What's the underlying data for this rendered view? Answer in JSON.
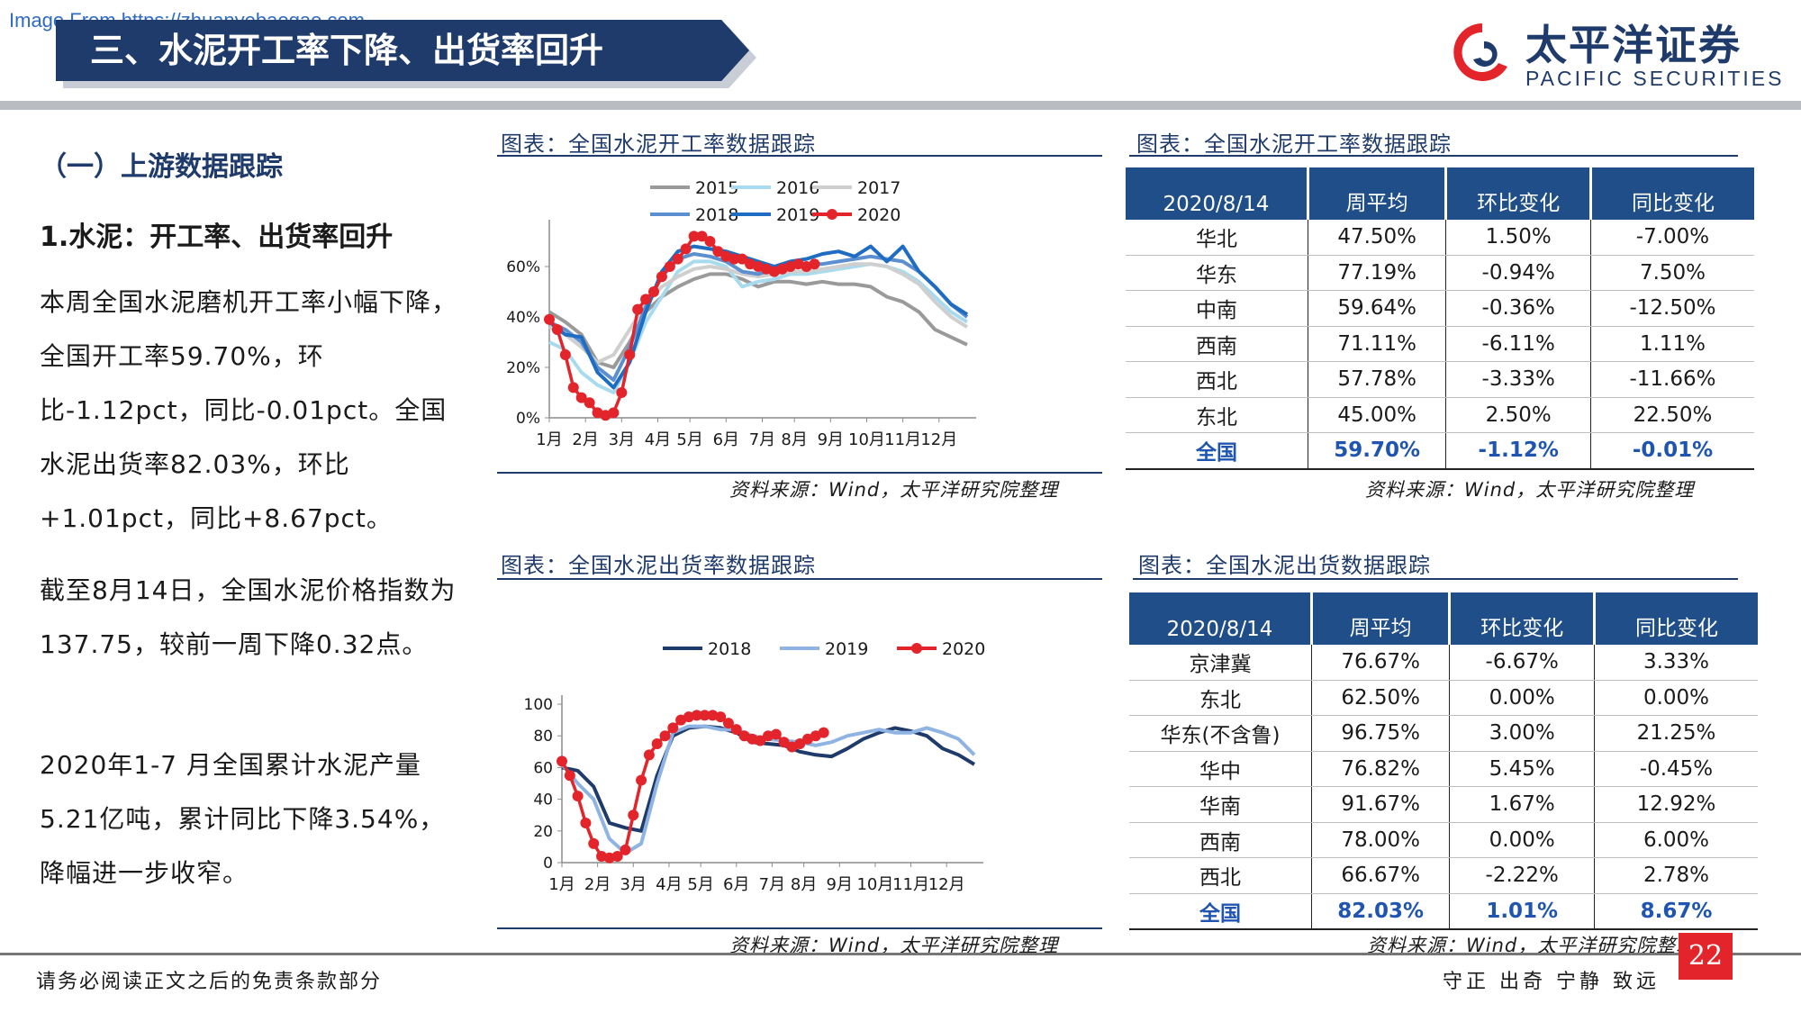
{
  "header": {
    "watermark": "Image From https://zhuanyebaogao.com",
    "title": "三、水泥开工率下降、出货率回升",
    "logo_cn": "太平洋证券",
    "logo_en": "PACIFIC SECURITIES",
    "brand_color": "#1f3b6b",
    "logo_accent": "#e3242b"
  },
  "left": {
    "section": "（一）上游数据跟踪",
    "subheading": "1.水泥：开工率、出货率回升",
    "para1": "本周全国水泥磨机开工率小幅下降，全国开工率59.70%，环比-1.12pct，同比-0.01pct。全国水泥出货率82.03%，环比+1.01pct，同比+8.67pct。",
    "para2": "截至8月14日，全国水泥价格指数为137.75，较前一周下降0.32点。",
    "para3": "2020年1-7 月全国累计水泥产量5.21亿吨，累计同比下降3.54%，降幅进一步收窄。"
  },
  "fig1": {
    "title": "图表：全国水泥开工率数据跟踪",
    "source": "资料来源：Wind，太平洋研究院整理"
  },
  "fig2": {
    "title": "图表：全国水泥开工率数据跟踪",
    "source": "资料来源：Wind，太平洋研究院整理"
  },
  "fig3": {
    "title": "图表：全国水泥出货率数据跟踪",
    "source": "资料来源：Wind，太平洋研究院整理"
  },
  "fig4": {
    "title": "图表：全国水泥出货数据跟踪",
    "source": "资料来源：Wind，太平洋研究院整理"
  },
  "chart_data": [
    {
      "type": "line",
      "x_unit": "week of year",
      "x_tick_positions": [
        1,
        5.5,
        10,
        14.5,
        18.5,
        23,
        27.5,
        31.5,
        36,
        40.5,
        45,
        49.5
      ],
      "x_tick_labels": [
        "1月",
        "2月",
        "3月",
        "4月",
        "5月",
        "6月",
        "7月",
        "8月",
        "9月",
        "10月",
        "11月",
        "12月"
      ],
      "y_ticks": [
        0,
        20,
        40,
        60
      ],
      "y_tick_labels": [
        "0%",
        "20%",
        "40%",
        "60%"
      ],
      "ylim": [
        0,
        75
      ],
      "xlim": [
        1,
        53
      ],
      "legend_position": "top",
      "series": [
        {
          "name": "2015",
          "color": "#9a9a9a",
          "marker": false,
          "x": [
            1,
            3,
            5,
            7,
            9,
            11,
            13,
            15,
            17,
            19,
            21,
            23,
            25,
            27,
            29,
            31,
            33,
            35,
            37,
            39,
            41,
            43,
            45,
            47,
            49,
            51,
            53
          ],
          "values": [
            42,
            38,
            33,
            22,
            20,
            30,
            42,
            48,
            52,
            55,
            57,
            57,
            55,
            52,
            54,
            54,
            53,
            54,
            53,
            53,
            52,
            48,
            46,
            42,
            35,
            32,
            29
          ]
        },
        {
          "name": "2016",
          "color": "#a9dbef",
          "marker": false,
          "x": [
            1,
            3,
            5,
            7,
            9,
            11,
            13,
            15,
            17,
            19,
            21,
            23,
            25,
            27,
            29,
            31,
            33,
            35,
            37,
            39,
            41,
            43,
            45,
            47,
            49,
            51,
            53
          ],
          "values": [
            30,
            27,
            18,
            13,
            10,
            22,
            38,
            48,
            58,
            62,
            62,
            60,
            52,
            54,
            55,
            57,
            57,
            58,
            59,
            60,
            61,
            60,
            58,
            54,
            48,
            42,
            38
          ]
        },
        {
          "name": "2017",
          "color": "#cfcfcf",
          "marker": false,
          "x": [
            1,
            3,
            5,
            7,
            9,
            11,
            13,
            15,
            17,
            19,
            21,
            23,
            25,
            27,
            29,
            31,
            33,
            35,
            37,
            39,
            41,
            43,
            45,
            47,
            49,
            51,
            53
          ],
          "values": [
            36,
            33,
            28,
            22,
            25,
            35,
            45,
            52,
            56,
            59,
            60,
            59,
            57,
            56,
            57,
            58,
            58,
            59,
            60,
            61,
            61,
            60,
            57,
            53,
            46,
            40,
            36
          ]
        },
        {
          "name": "2018",
          "color": "#5b8fcf",
          "marker": false,
          "x": [
            1,
            3,
            5,
            7,
            9,
            11,
            13,
            15,
            17,
            19,
            21,
            23,
            25,
            27,
            29,
            31,
            33,
            35,
            37,
            39,
            41,
            43,
            45,
            47,
            49,
            51,
            53
          ],
          "values": [
            38,
            35,
            30,
            20,
            15,
            28,
            44,
            56,
            63,
            65,
            64,
            62,
            58,
            57,
            59,
            61,
            61,
            61,
            62,
            63,
            64,
            63,
            62,
            58,
            52,
            45,
            40
          ]
        },
        {
          "name": "2019",
          "color": "#1f6dc2",
          "marker": false,
          "x": [
            1,
            3,
            5,
            7,
            9,
            11,
            13,
            15,
            17,
            19,
            21,
            23,
            25,
            27,
            29,
            31,
            33,
            35,
            37,
            39,
            41,
            43,
            45,
            47,
            49,
            51,
            53
          ],
          "values": [
            38,
            33,
            32,
            18,
            12,
            22,
            42,
            58,
            66,
            68,
            67,
            66,
            64,
            62,
            60,
            62,
            63,
            65,
            66,
            64,
            68,
            62,
            68,
            58,
            52,
            45,
            41
          ]
        },
        {
          "name": "2020",
          "color": "#e3242b",
          "marker": true,
          "x": [
            1,
            2,
            3,
            4,
            5,
            6,
            7,
            8,
            9,
            10,
            11,
            12,
            13,
            14,
            15,
            16,
            17,
            18,
            19,
            20,
            21,
            22,
            23,
            24,
            25,
            26,
            27,
            28,
            29,
            30,
            31,
            32,
            33,
            34
          ],
          "values": [
            39,
            35,
            25,
            12,
            8,
            6,
            2,
            1,
            2,
            10,
            25,
            43,
            47,
            50,
            56,
            60,
            63,
            67,
            72,
            72,
            70,
            66,
            64,
            63,
            63,
            61,
            60,
            59,
            58,
            59,
            60,
            61,
            60,
            61
          ]
        }
      ]
    },
    {
      "type": "table",
      "columns": [
        "2020/8/14",
        "周平均",
        "环比变化",
        "同比变化"
      ],
      "rows": [
        [
          "华北",
          "47.50%",
          "1.50%",
          "-7.00%"
        ],
        [
          "华东",
          "77.19%",
          "-0.94%",
          "7.50%"
        ],
        [
          "中南",
          "59.64%",
          "-0.36%",
          "-12.50%"
        ],
        [
          "西南",
          "71.11%",
          "-6.11%",
          "1.11%"
        ],
        [
          "西北",
          "57.78%",
          "-3.33%",
          "-11.66%"
        ],
        [
          "东北",
          "45.00%",
          "2.50%",
          "22.50%"
        ],
        [
          "全国",
          "59.70%",
          "-1.12%",
          "-0.01%"
        ]
      ]
    },
    {
      "type": "line",
      "x_unit": "week of year",
      "x_tick_positions": [
        1,
        5.5,
        10,
        14.5,
        18.5,
        23,
        27.5,
        31.5,
        36,
        40.5,
        45,
        49.5
      ],
      "x_tick_labels": [
        "1月",
        "2月",
        "3月",
        "4月",
        "5月",
        "6月",
        "7月",
        "8月",
        "9月",
        "10月",
        "11月",
        "12月"
      ],
      "y_ticks": [
        0,
        20,
        40,
        60,
        80,
        100
      ],
      "y_tick_labels": [
        "0",
        "20",
        "40",
        "60",
        "80",
        "100"
      ],
      "ylim": [
        0,
        100
      ],
      "xlim": [
        1,
        53
      ],
      "legend_position": "top",
      "series": [
        {
          "name": "2018",
          "color": "#1f3b6b",
          "marker": false,
          "x": [
            1,
            3,
            5,
            7,
            9,
            11,
            13,
            15,
            17,
            19,
            21,
            23,
            25,
            27,
            29,
            31,
            33,
            35,
            37,
            39,
            41,
            43,
            45,
            47,
            49,
            51,
            53
          ],
          "values": [
            60,
            58,
            48,
            25,
            22,
            20,
            55,
            80,
            85,
            86,
            85,
            82,
            76,
            75,
            74,
            70,
            68,
            67,
            72,
            78,
            82,
            85,
            83,
            80,
            72,
            68,
            62
          ]
        },
        {
          "name": "2019",
          "color": "#8fb4e3",
          "marker": false,
          "x": [
            1,
            3,
            5,
            7,
            9,
            11,
            13,
            15,
            17,
            19,
            21,
            23,
            25,
            27,
            29,
            31,
            33,
            35,
            37,
            39,
            41,
            43,
            45,
            47,
            49,
            51,
            53
          ],
          "values": [
            62,
            50,
            40,
            15,
            6,
            12,
            50,
            82,
            86,
            86,
            84,
            84,
            80,
            78,
            77,
            76,
            74,
            76,
            80,
            82,
            84,
            82,
            82,
            85,
            82,
            78,
            68
          ]
        },
        {
          "name": "2020",
          "color": "#e3242b",
          "marker": true,
          "x": [
            1,
            2,
            3,
            4,
            5,
            6,
            7,
            8,
            9,
            10,
            11,
            12,
            13,
            14,
            15,
            16,
            17,
            18,
            19,
            20,
            21,
            22,
            23,
            24,
            25,
            26,
            27,
            28,
            29,
            30,
            31,
            32,
            33,
            34
          ],
          "values": [
            64,
            55,
            42,
            25,
            12,
            4,
            3,
            4,
            8,
            30,
            52,
            68,
            75,
            80,
            85,
            90,
            92,
            93,
            93,
            93,
            92,
            88,
            84,
            80,
            78,
            77,
            80,
            81,
            76,
            73,
            75,
            78,
            80,
            82
          ]
        }
      ]
    },
    {
      "type": "table",
      "columns": [
        "2020/8/14",
        "周平均",
        "环比变化",
        "同比变化"
      ],
      "rows": [
        [
          "京津冀",
          "76.67%",
          "-6.67%",
          "3.33%"
        ],
        [
          "东北",
          "62.50%",
          "0.00%",
          "0.00%"
        ],
        [
          "华东(不含鲁)",
          "96.75%",
          "3.00%",
          "21.25%"
        ],
        [
          "华中",
          "76.82%",
          "5.45%",
          "-0.45%"
        ],
        [
          "华南",
          "91.67%",
          "1.67%",
          "12.92%"
        ],
        [
          "西南",
          "78.00%",
          "0.00%",
          "6.00%"
        ],
        [
          "西北",
          "66.67%",
          "-2.22%",
          "2.78%"
        ],
        [
          "全国",
          "82.03%",
          "1.01%",
          "8.67%"
        ]
      ]
    }
  ],
  "footer": {
    "left": "请务必阅读正文之后的免责条款部分",
    "right": "守正 出奇 宁静 致远",
    "page": "22"
  }
}
